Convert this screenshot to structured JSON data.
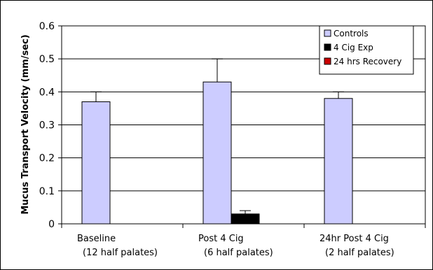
{
  "chart_data": {
    "type": "bar",
    "title": "",
    "ylabel": "Mucus Transport Velocity (mm/sec)",
    "xlabel": "",
    "ylim": [
      0,
      0.6
    ],
    "yticks": [
      "0",
      "0.1",
      "0.2",
      "0.3",
      "0.4",
      "0.5",
      "0.6"
    ],
    "categories": [
      {
        "line1": "Baseline",
        "line2": "(12 half palates)"
      },
      {
        "line1": "Post 4 Cig",
        "line2": "(6 half palates)"
      },
      {
        "line1": "24hr Post 4 Cig",
        "line2": "(2 half palates)"
      }
    ],
    "series": [
      {
        "name": "Controls",
        "color": "#ccccff",
        "values": [
          0.37,
          0.43,
          0.38
        ],
        "errors": [
          0.03,
          0.07,
          0.02
        ]
      },
      {
        "name": "4 Cig Exp",
        "color": "#000000",
        "values": [
          null,
          0.03,
          null
        ],
        "errors": [
          null,
          0.01,
          null
        ]
      },
      {
        "name": "24 hrs Recovery",
        "color": "#cc0000",
        "values": [
          null,
          null,
          null
        ],
        "errors": [
          null,
          null,
          null
        ]
      }
    ],
    "grid": true,
    "legend_position": "top-right"
  }
}
